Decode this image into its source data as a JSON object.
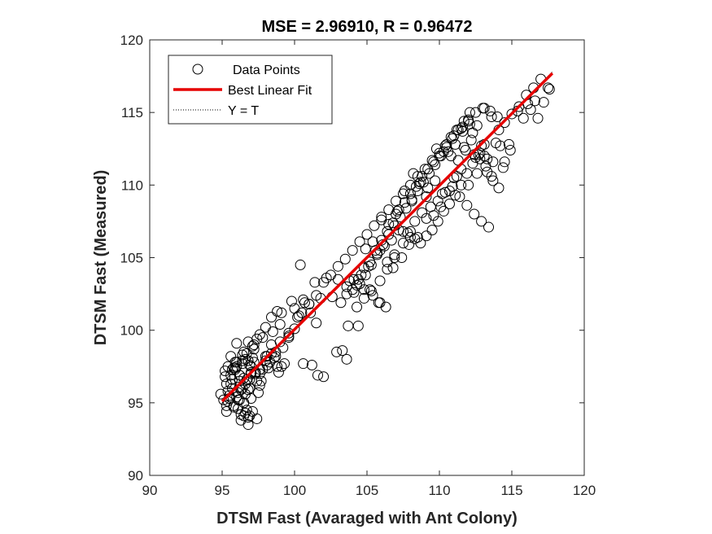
{
  "chart_data": {
    "type": "scatter",
    "title": "MSE = 2.96910, R = 0.96472",
    "xlabel": "DTSM Fast (Avaraged with Ant Colony)",
    "ylabel": "DTSM Fast (Measured)",
    "xlim": [
      90,
      120
    ],
    "ylim": [
      90,
      120
    ],
    "xticks": [
      "90",
      "95",
      "100",
      "105",
      "110",
      "115",
      "120"
    ],
    "yticks": [
      "90",
      "95",
      "100",
      "105",
      "110",
      "115",
      "120"
    ],
    "grid": false,
    "legend_position": "top-left",
    "legend": {
      "points_label": "Data Points",
      "fit_label": "Best Linear Fit",
      "identity_label": "Y = T"
    },
    "colors": {
      "points": "#000000",
      "fit": "#e60000",
      "identity": "#000000"
    },
    "fit_line": {
      "x": [
        95.0,
        117.8
      ],
      "y": [
        95.1,
        117.7
      ]
    },
    "identity_line": {
      "x": [
        95.0,
        117.8
      ],
      "y": [
        95.0,
        117.8
      ]
    },
    "series": [
      {
        "name": "Data Points",
        "x": [
          95.1,
          95.2,
          95.3,
          95.4,
          95.5,
          95.6,
          95.7,
          95.8,
          95.9,
          96.0,
          96.1,
          96.2,
          96.3,
          96.4,
          96.5,
          96.6,
          96.7,
          96.8,
          96.9,
          97.0,
          95.3,
          95.5,
          95.7,
          95.9,
          96.1,
          96.3,
          96.5,
          96.7,
          96.9,
          97.1,
          95.2,
          95.6,
          96.0,
          96.4,
          96.8,
          97.2,
          97.6,
          98.0,
          95.4,
          95.8,
          96.2,
          96.6,
          97.0,
          97.4,
          97.8,
          98.2,
          98.6,
          99.0,
          96.0,
          96.3,
          96.6,
          96.9,
          97.2,
          97.5,
          97.8,
          98.1,
          98.4,
          98.7,
          99.0,
          99.3,
          99.6,
          100.0,
          100.3,
          100.6,
          101.0,
          101.4,
          101.8,
          102.2,
          102.6,
          103.0,
          96.2,
          96.5,
          96.8,
          97.1,
          97.4,
          98.8,
          99.2,
          99.6,
          100.0,
          100.5,
          101.0,
          101.5,
          102.0,
          102.5,
          103.0,
          103.5,
          104.0,
          104.5,
          105.0,
          105.5,
          106.0,
          106.5,
          107.0,
          107.5,
          108.0,
          108.5,
          109.0,
          109.5,
          110.0,
          110.5,
          111.0,
          111.5,
          112.0,
          112.5,
          113.0,
          113.5,
          114.0,
          114.5,
          115.0,
          115.5,
          116.0,
          116.5,
          117.0,
          117.5,
          103.2,
          103.6,
          104.0,
          104.4,
          104.8,
          105.2,
          105.6,
          106.0,
          106.4,
          106.8,
          107.2,
          107.6,
          108.0,
          108.4,
          108.8,
          109.2,
          109.6,
          110.0,
          110.4,
          110.8,
          111.2,
          111.6,
          112.0,
          112.4,
          112.8,
          113.2,
          113.6,
          104.1,
          104.5,
          104.9,
          105.3,
          105.7,
          106.1,
          106.5,
          106.9,
          107.3,
          107.7,
          108.1,
          108.5,
          108.9,
          109.3,
          109.7,
          110.1,
          110.5,
          110.9,
          111.3,
          111.7,
          112.1,
          112.5,
          112.9,
          113.3,
          113.7,
          114.1,
          114.5,
          103.8,
          104.3,
          104.8,
          105.4,
          105.9,
          106.3,
          106.8,
          107.4,
          107.9,
          108.3,
          108.7,
          109.1,
          109.5,
          109.9,
          110.3,
          110.7,
          111.1,
          111.5,
          111.9,
          112.3,
          112.7,
          113.1,
          101.6,
          102.9,
          103.3,
          104.4,
          105.2,
          105.8,
          100.6,
          101.2,
          102.0,
          103.6,
          98.3,
          98.9,
          99.6,
          100.2,
          100.7,
          101.1,
          101.5,
          97.6,
          98.1,
          98.5,
          99.1,
          99.8,
          100.4,
          97.3,
          97.7,
          98.0,
          98.4,
          98.7,
          99.1,
          96.4,
          96.7,
          97.0,
          97.3,
          97.6,
          95.6,
          95.9,
          96.2,
          96.5,
          96.8,
          97.1,
          94.9,
          95.3,
          95.7,
          96.1,
          96.5,
          96.9,
          95.4,
          95.8,
          96.2,
          96.6,
          97.0,
          97.4,
          96.0,
          96.4,
          96.8,
          97.2,
          97.6,
          98.0,
          98.4,
          98.8,
          115.8,
          116.3,
          116.8,
          117.2,
          117.6,
          116.1,
          116.6,
          115.4,
          114.8,
          114.2,
          113.7,
          113.1,
          112.6,
          112.0,
          111.5,
          111.0,
          110.4,
          109.9,
          109.4,
          108.8,
          108.3,
          107.8,
          107.2,
          106.7,
          106.2,
          105.7,
          105.1,
          104.6,
          104.1,
          103.6,
          110.6,
          111.1,
          111.6,
          112.1,
          112.6,
          113.1,
          113.6,
          114.1,
          109.8,
          110.3,
          110.8,
          111.3,
          111.8,
          112.3,
          108.2,
          108.7,
          109.2,
          109.7,
          110.2,
          107.1,
          107.6,
          108.1,
          108.6,
          109.1,
          106.0,
          106.5,
          107.0,
          107.5,
          108.0,
          104.9,
          105.4,
          105.9,
          106.4,
          106.9,
          110.9,
          111.4,
          111.9,
          112.4,
          112.9,
          113.4,
          114.4,
          114.9,
          113.9,
          113.3,
          112.8,
          112.2,
          111.7,
          111.2,
          110.7,
          110.1,
          109.6,
          109.1,
          108.5,
          108.0,
          107.5,
          106.9,
          106.4,
          105.9,
          105.3,
          104.8,
          104.3,
          103.7
        ],
        "y": [
          95.2,
          96.8,
          94.4,
          97.5,
          95.3,
          98.2,
          96.0,
          94.8,
          97.3,
          99.1,
          95.7,
          96.5,
          94.2,
          97.9,
          95.0,
          96.3,
          98.4,
          95.9,
          94.1,
          97.0,
          94.8,
          95.5,
          96.6,
          97.8,
          94.6,
          95.9,
          96.7,
          94.5,
          97.6,
          98.1,
          97.2,
          96.3,
          97.5,
          96.0,
          94.0,
          98.7,
          97.0,
          98.2,
          95.1,
          94.7,
          96.9,
          95.6,
          97.1,
          96.5,
          99.5,
          97.4,
          98.1,
          99.2,
          95.4,
          93.8,
          94.3,
          96.0,
          97.8,
          95.7,
          97.3,
          97.6,
          99.0,
          98.5,
          100.4,
          97.7,
          99.8,
          101.5,
          101.0,
          102.1,
          101.8,
          103.3,
          102.2,
          103.6,
          102.3,
          103.5,
          95.2,
          94.1,
          93.5,
          94.4,
          93.9,
          97.5,
          98.8,
          99.5,
          100.1,
          101.2,
          101.8,
          102.4,
          103.3,
          103.8,
          104.4,
          104.9,
          105.5,
          106.1,
          106.6,
          107.2,
          107.8,
          108.3,
          108.9,
          109.4,
          110.0,
          110.6,
          111.1,
          111.7,
          112.2,
          112.8,
          113.4,
          113.9,
          114.5,
          115.0,
          115.3,
          115.1,
          114.7,
          114.3,
          114.9,
          115.4,
          116.2,
          116.7,
          117.3,
          116.7,
          101.9,
          102.5,
          102.8,
          103.5,
          104.3,
          104.7,
          105.5,
          106.2,
          106.8,
          107.4,
          108.3,
          108.8,
          109.4,
          109.9,
          110.6,
          111.1,
          111.6,
          112.0,
          112.7,
          113.3,
          113.8,
          114.0,
          114.4,
          112.1,
          111.8,
          111.3,
          110.6,
          102.6,
          103.2,
          103.8,
          104.5,
          105.2,
          105.9,
          106.6,
          107.2,
          107.8,
          108.4,
          109.0,
          109.6,
          110.2,
          110.8,
          111.4,
          112.0,
          112.6,
          113.2,
          113.8,
          114.4,
          115.0,
          111.9,
          112.7,
          110.9,
          110.3,
          109.8,
          111.6,
          103.4,
          103.1,
          102.8,
          102.4,
          101.9,
          101.6,
          104.3,
          105.0,
          105.9,
          106.3,
          106.0,
          106.5,
          106.9,
          107.5,
          108.2,
          108.7,
          109.3,
          110.0,
          110.8,
          111.5,
          112.1,
          112.8,
          96.9,
          98.5,
          98.6,
          100.3,
          102.8,
          101.9,
          97.7,
          97.6,
          96.8,
          98.0,
          97.8,
          97.1,
          99.6,
          100.9,
          101.9,
          101.2,
          100.5,
          97.3,
          98.2,
          99.9,
          101.2,
          102.0,
          104.5,
          97.0,
          96.5,
          97.9,
          98.4,
          98.2,
          97.5,
          97.7,
          96.6,
          95.3,
          97.1,
          96.2,
          96.9,
          97.4,
          96.1,
          95.0,
          97.9,
          98.9,
          95.6,
          96.3,
          97.3,
          95.2,
          98.5,
          96.6,
          95.8,
          97.4,
          96.9,
          98.0,
          97.5,
          99.4,
          97.8,
          98.3,
          99.2,
          99.0,
          99.7,
          100.2,
          100.9,
          101.3,
          114.6,
          115.2,
          114.6,
          115.7,
          116.6,
          115.6,
          115.8,
          115.1,
          112.8,
          112.7,
          111.6,
          112.0,
          110.8,
          110.0,
          111.1,
          110.5,
          109.5,
          108.9,
          108.5,
          108.1,
          107.5,
          106.7,
          106.9,
          106.2,
          105.8,
          105.3,
          104.4,
          103.8,
          103.5,
          103.0,
          112.3,
          112.8,
          113.7,
          114.2,
          114.1,
          115.3,
          114.7,
          113.8,
          112.5,
          112.3,
          112.0,
          111.7,
          112.4,
          113.6,
          110.8,
          110.2,
          109.8,
          110.3,
          109.4,
          108.2,
          109.6,
          108.9,
          110.1,
          109.2,
          107.6,
          107.3,
          108.0,
          106.8,
          106.4,
          105.6,
          106.1,
          105.5,
          104.7,
          105.2,
          109.9,
          109.2,
          108.6,
          108.0,
          107.5,
          107.1,
          111.2,
          112.4,
          112.9,
          111.8,
          112.2,
          113.1,
          112.6,
          110.6,
          109.6,
          108.5,
          107.9,
          107.7,
          106.4,
          106.8,
          106.0,
          105.0,
          104.2,
          103.4,
          102.7,
          102.2,
          101.6,
          100.3
        ]
      }
    ]
  }
}
